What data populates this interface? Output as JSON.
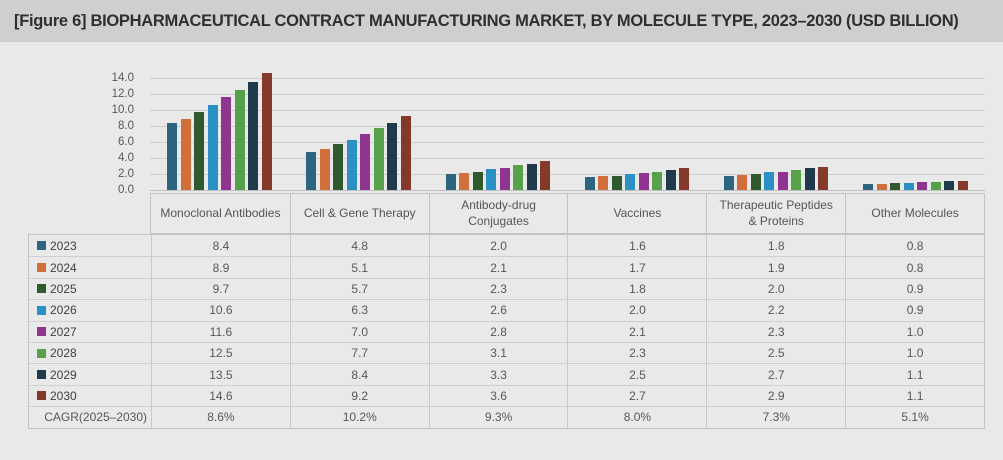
{
  "title": "[Figure 6] BIOPHARMACEUTICAL CONTRACT MANUFACTURING MARKET, BY MOLECULE TYPE, 2023–2030 (USD BILLION)",
  "chart_data": {
    "type": "bar",
    "title": "[Figure 6] BIOPHARMACEUTICAL CONTRACT MANUFACTURING MARKET, BY MOLECULE TYPE, 2023–2030 (USD BILLION)",
    "unit": "USD BILLION",
    "categories": [
      "Monoclonal Antibodies",
      "Cell & Gene Therapy",
      "Antibody-drug Conjugates",
      "Vaccines",
      "Therapeutic Peptides & Proteins",
      "Other Molecules"
    ],
    "series": [
      {
        "name": "2023",
        "color": "#2D6480",
        "values": [
          8.4,
          4.8,
          2.0,
          1.6,
          1.8,
          0.8
        ]
      },
      {
        "name": "2024",
        "color": "#D06E3C",
        "values": [
          8.9,
          5.1,
          2.1,
          1.7,
          1.9,
          0.8
        ]
      },
      {
        "name": "2025",
        "color": "#31592E",
        "values": [
          9.7,
          5.7,
          2.3,
          1.8,
          2.0,
          0.9
        ]
      },
      {
        "name": "2026",
        "color": "#2B90C3",
        "values": [
          10.6,
          6.3,
          2.6,
          2.0,
          2.2,
          0.9
        ]
      },
      {
        "name": "2027",
        "color": "#8F3590",
        "values": [
          11.6,
          7.0,
          2.8,
          2.1,
          2.3,
          1.0
        ]
      },
      {
        "name": "2028",
        "color": "#56A149",
        "values": [
          12.5,
          7.7,
          3.1,
          2.3,
          2.5,
          1.0
        ]
      },
      {
        "name": "2029",
        "color": "#1F3A4B",
        "values": [
          13.5,
          8.4,
          3.3,
          2.5,
          2.7,
          1.1
        ]
      },
      {
        "name": "2030",
        "color": "#84392B",
        "values": [
          14.6,
          9.2,
          3.6,
          2.7,
          2.9,
          1.1
        ]
      }
    ],
    "ylim": [
      0,
      14
    ],
    "ytick_step": 2,
    "yticks": [
      "14.0",
      "12.0",
      "10.0",
      "8.0",
      "6.0",
      "4.0",
      "2.0",
      "0.0"
    ],
    "grid": true,
    "legend_position": "table-left-column"
  },
  "table": {
    "columns": [
      "Monoclonal Antibodies",
      "Cell & Gene Therapy",
      "Antibody-drug Conjugates",
      "Vaccines",
      "Therapeutic Peptides & Proteins",
      "Other Molecules"
    ],
    "rows": [
      {
        "year": "2023",
        "color": "#2D6480",
        "values": [
          "8.4",
          "4.8",
          "2.0",
          "1.6",
          "1.8",
          "0.8"
        ]
      },
      {
        "year": "2024",
        "color": "#D06E3C",
        "values": [
          "8.9",
          "5.1",
          "2.1",
          "1.7",
          "1.9",
          "0.8"
        ]
      },
      {
        "year": "2025",
        "color": "#31592E",
        "values": [
          "9.7",
          "5.7",
          "2.3",
          "1.8",
          "2.0",
          "0.9"
        ]
      },
      {
        "year": "2026",
        "color": "#2B90C3",
        "values": [
          "10.6",
          "6.3",
          "2.6",
          "2.0",
          "2.2",
          "0.9"
        ]
      },
      {
        "year": "2027",
        "color": "#8F3590",
        "values": [
          "11.6",
          "7.0",
          "2.8",
          "2.1",
          "2.3",
          "1.0"
        ]
      },
      {
        "year": "2028",
        "color": "#56A149",
        "values": [
          "12.5",
          "7.7",
          "3.1",
          "2.3",
          "2.5",
          "1.0"
        ]
      },
      {
        "year": "2029",
        "color": "#1F3A4B",
        "values": [
          "13.5",
          "8.4",
          "3.3",
          "2.5",
          "2.7",
          "1.1"
        ]
      },
      {
        "year": "2030",
        "color": "#84392B",
        "values": [
          "14.6",
          "9.2",
          "3.6",
          "2.7",
          "2.9",
          "1.1"
        ]
      }
    ],
    "cagr_label": "CAGR(2025–2030)",
    "cagr_values": [
      "8.6%",
      "10.2%",
      "9.3%",
      "8.0%",
      "7.3%",
      "5.1%"
    ]
  },
  "colors": {
    "title_bar_bg": "#cfcfcf",
    "panel_bg": "#e9e9e9",
    "grid_line": "#cccccc",
    "table_border": "#c3c3c3",
    "text_muted": "#575757"
  }
}
